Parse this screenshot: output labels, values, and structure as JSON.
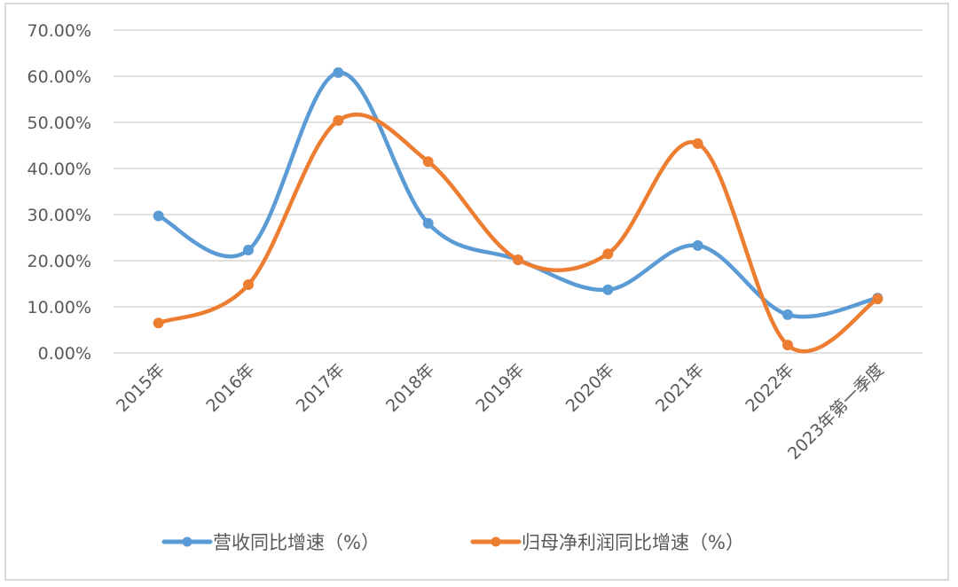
{
  "chart_data": {
    "type": "line",
    "title": "",
    "xlabel": "",
    "ylabel": "",
    "categories": [
      "2015年",
      "2016年",
      "2017年",
      "2018年",
      "2019年",
      "2020年",
      "2021年",
      "2022年",
      "2023年第一季度"
    ],
    "series": [
      {
        "name": "营收同比增速（%）",
        "color": "#5b9bd5",
        "values": [
          29.7,
          22.3,
          60.8,
          28.1,
          20.2,
          13.7,
          23.3,
          8.3,
          11.9
        ]
      },
      {
        "name": "归母净利润同比增速（%）",
        "color": "#ed7d31",
        "values": [
          6.5,
          14.8,
          50.4,
          41.5,
          20.2,
          21.5,
          45.4,
          1.7,
          11.7
        ]
      }
    ],
    "ylim": [
      0,
      70
    ],
    "yticks": [
      "0.00%",
      "10.00%",
      "20.00%",
      "30.00%",
      "40.00%",
      "50.00%",
      "60.00%",
      "70.00%"
    ],
    "grid": true,
    "smooth": true,
    "legend_position": "bottom"
  },
  "legend": {
    "items": [
      {
        "label": "营收同比增速（%）",
        "color": "#5b9bd5"
      },
      {
        "label": "归母净利润同比增速（%）",
        "color": "#ed7d31"
      }
    ]
  }
}
